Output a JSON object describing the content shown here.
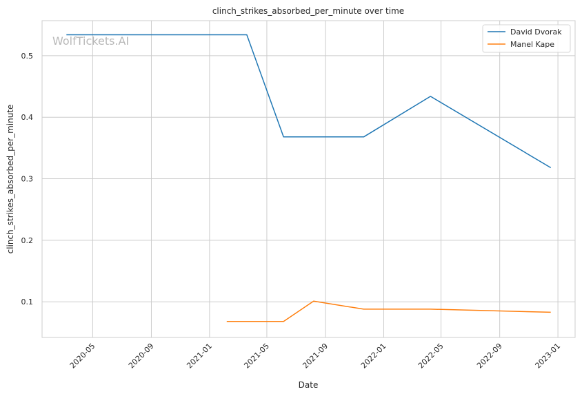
{
  "chart_data": {
    "type": "line",
    "title": "clinch_strikes_absorbed_per_minute over time",
    "xlabel": "Date",
    "ylabel": "clinch_strikes_absorbed_per_minute",
    "watermark": "WolfTickets.AI",
    "grid": true,
    "legend_position": "top-right",
    "xlim": [
      "2020-01-16",
      "2023-02-06"
    ],
    "ylim": [
      0.042,
      0.557
    ],
    "x_ticks": [
      "2020-05",
      "2020-09",
      "2021-01",
      "2021-05",
      "2021-09",
      "2022-01",
      "2022-05",
      "2022-09",
      "2023-01"
    ],
    "y_ticks": [
      0.1,
      0.2,
      0.3,
      0.4,
      0.5
    ],
    "series": [
      {
        "name": "David Dvorak",
        "color": "#1f77b4",
        "points": [
          {
            "x": "2020-03-07",
            "y": 0.534
          },
          {
            "x": "2021-03-20",
            "y": 0.534
          },
          {
            "x": "2021-06-05",
            "y": 0.368
          },
          {
            "x": "2021-11-20",
            "y": 0.368
          },
          {
            "x": "2022-04-09",
            "y": 0.434
          },
          {
            "x": "2022-12-17",
            "y": 0.318
          }
        ]
      },
      {
        "name": "Manel Kape",
        "color": "#ff7f0e",
        "points": [
          {
            "x": "2021-02-06",
            "y": 0.068
          },
          {
            "x": "2021-06-05",
            "y": 0.068
          },
          {
            "x": "2021-08-07",
            "y": 0.101
          },
          {
            "x": "2021-11-20",
            "y": 0.088
          },
          {
            "x": "2022-04-09",
            "y": 0.088
          },
          {
            "x": "2022-12-17",
            "y": 0.083
          }
        ]
      }
    ]
  }
}
